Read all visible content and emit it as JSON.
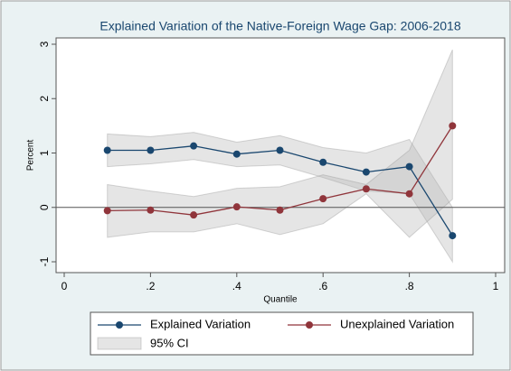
{
  "chart_data": {
    "type": "line",
    "title": "Explained Variation of the Native-Foreign Wage Gap: 2006-2018",
    "x_label": "Quantile",
    "y_label": "Percent",
    "x": [
      0.1,
      0.2,
      0.3,
      0.4,
      0.5,
      0.6,
      0.7,
      0.8,
      0.9
    ],
    "series": [
      {
        "name": "Explained Variation",
        "color": "#1a476f",
        "values": [
          1.05,
          1.05,
          1.13,
          0.98,
          1.05,
          0.83,
          0.65,
          0.75,
          -0.52
        ],
        "ci_lower": [
          0.75,
          0.8,
          0.88,
          0.75,
          0.78,
          0.55,
          0.3,
          0.25,
          -1.0
        ],
        "ci_upper": [
          1.35,
          1.3,
          1.38,
          1.2,
          1.32,
          1.1,
          1.0,
          1.25,
          0.0
        ]
      },
      {
        "name": "Unexplained Variation",
        "color": "#90353b",
        "values": [
          -0.06,
          -0.05,
          -0.14,
          0.01,
          -0.05,
          0.16,
          0.34,
          0.25,
          1.5
        ],
        "ci_lower": [
          -0.55,
          -0.45,
          -0.45,
          -0.3,
          -0.5,
          -0.3,
          0.25,
          -0.55,
          0.15
        ],
        "ci_upper": [
          0.42,
          0.3,
          0.2,
          0.35,
          0.38,
          0.6,
          0.42,
          1.05,
          2.9
        ]
      }
    ],
    "ci_label": "95% CI",
    "ci_color": "#b4b4b4",
    "hline": 0,
    "xlim": [
      0,
      1
    ],
    "ylim": [
      -1,
      3
    ],
    "xticks": [
      0,
      {
        "value": 0.2,
        "label": ".2"
      },
      {
        "value": 0.4,
        "label": ".4"
      },
      {
        "value": 0.6,
        "label": ".6"
      },
      {
        "value": 0.8,
        "label": ".8"
      },
      1
    ],
    "yticks": [
      -1,
      0,
      1,
      2,
      3
    ]
  }
}
